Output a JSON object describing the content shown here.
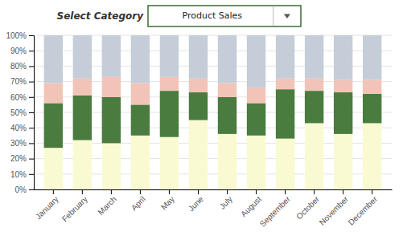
{
  "chart_data": {
    "type": "bar",
    "stacked": true,
    "title": "Select Category",
    "subtitle": "Product Sales",
    "categories": [
      "January",
      "February",
      "March",
      "April",
      "May",
      "June",
      "July",
      "August",
      "September",
      "October",
      "November",
      "December"
    ],
    "series": [
      {
        "color": "#FAFAD2",
        "values": [
          27,
          32,
          30,
          35,
          34,
          45,
          36,
          35,
          33,
          43,
          36,
          43
        ]
      },
      {
        "color": "#4a7c3f",
        "values": [
          29,
          29,
          30,
          20,
          30,
          18,
          24,
          21,
          32,
          21,
          27,
          19
        ]
      },
      {
        "color": "#f2c4b8",
        "values": [
          13,
          11,
          13,
          14,
          9,
          9,
          9,
          10,
          7,
          8,
          8,
          9
        ]
      },
      {
        "color": "#c5cdd8",
        "values": [
          31,
          28,
          27,
          31,
          27,
          28,
          31,
          34,
          28,
          28,
          29,
          29
        ]
      }
    ],
    "ylim": [
      0,
      100
    ],
    "yticks": [
      {
        "value": 0,
        "label": "0%"
      },
      {
        "value": 10,
        "label": "10%"
      },
      {
        "value": 20,
        "label": "20%"
      },
      {
        "value": 30,
        "label": "30%"
      },
      {
        "value": 40,
        "label": "40%"
      },
      {
        "value": 50,
        "label": "50%"
      },
      {
        "value": 60,
        "label": "60%"
      },
      {
        "value": 70,
        "label": "70%"
      },
      {
        "value": 80,
        "label": "80%"
      },
      {
        "value": 90,
        "label": "90%"
      },
      {
        "value": 100,
        "label": "100%"
      }
    ],
    "grid": true
  }
}
